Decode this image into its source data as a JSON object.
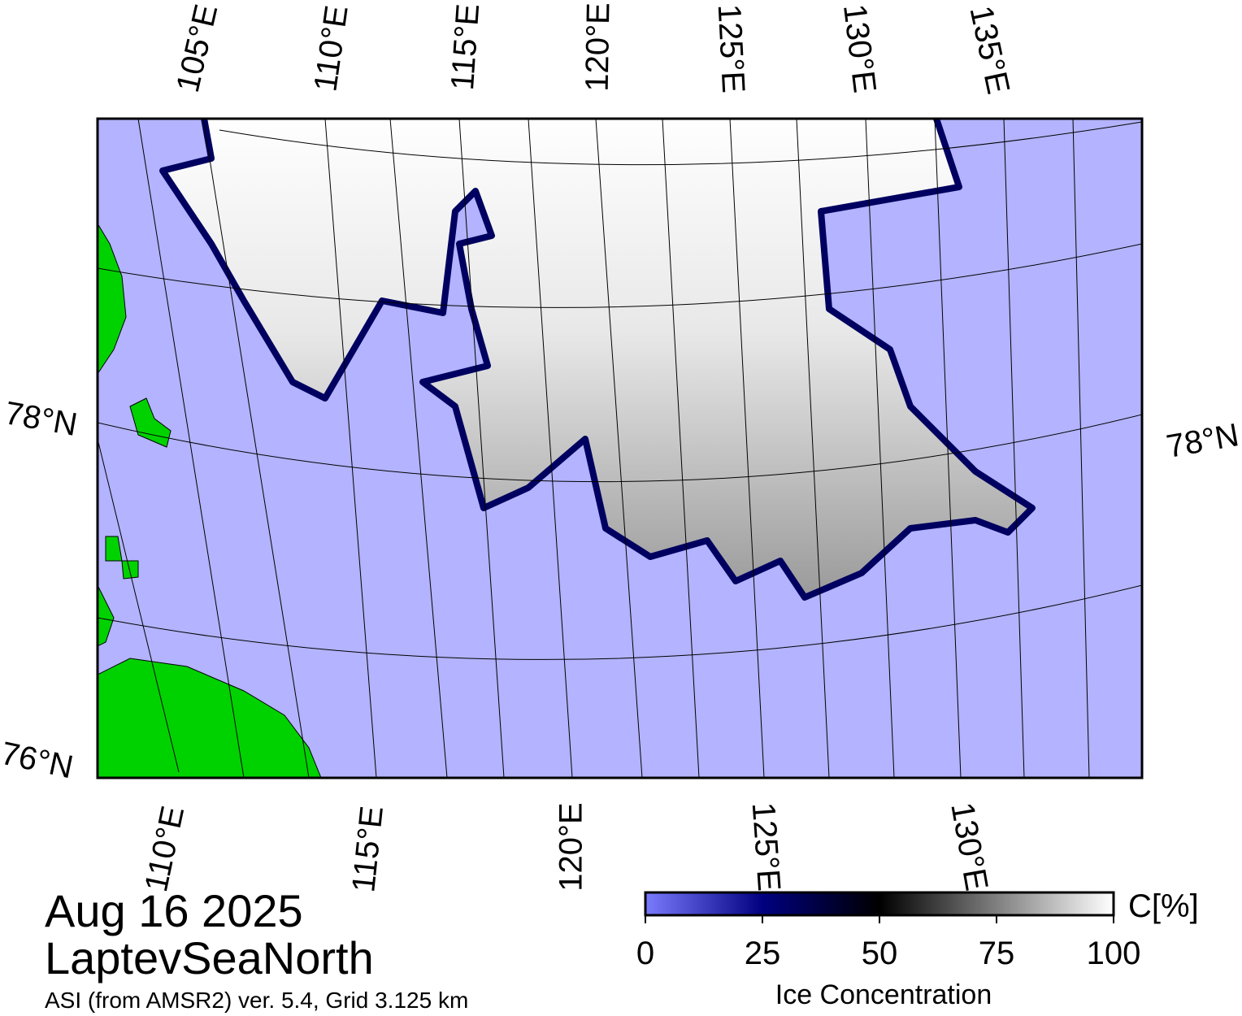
{
  "map": {
    "top_labels": [
      "105°E",
      "110°E",
      "115°E",
      "120°E",
      "125°E",
      "130°E",
      "135°E"
    ],
    "bottom_labels": [
      "110°E",
      "115°E",
      "120°E",
      "125°E",
      "130°E"
    ],
    "left_labels": [
      "78°N",
      "76°N"
    ],
    "right_labels": [
      "78°N"
    ]
  },
  "date": "Aug 16 2025",
  "region": "LaptevSeaNorth",
  "source": "ASI (from AMSR2) ver. 5.4,  Grid 3.125 km",
  "colorbar": {
    "lim": [
      0,
      100
    ],
    "ticks": [
      0,
      25,
      50,
      75,
      100
    ],
    "unit": "C[%]",
    "label": "Ice Concentration",
    "colors": [
      {
        "value": 0,
        "color": "#7b7bff"
      },
      {
        "value": 25,
        "color": "#000080"
      },
      {
        "value": 50,
        "color": "#000000"
      },
      {
        "value": 100,
        "color": "#ffffff"
      }
    ]
  }
}
